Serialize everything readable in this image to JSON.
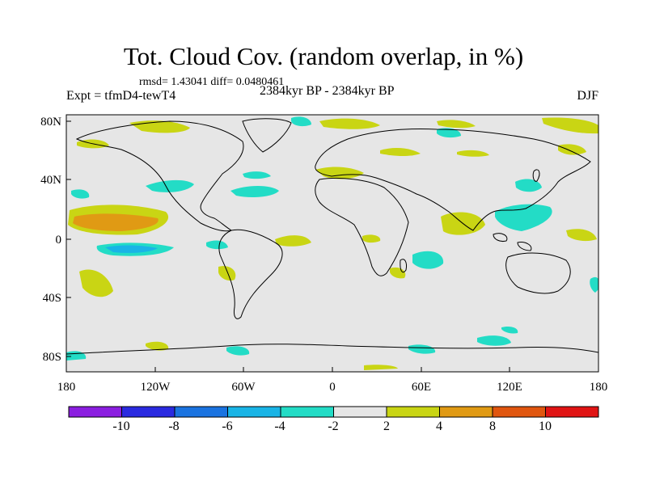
{
  "figure": {
    "title": "Tot. Cloud Cov. (random overlap, in %)",
    "stats": "rmsd= 1.43041 diff= 0.0480461",
    "left_label": "Expt = tfmD4-tewT4",
    "center_label": "2384kyr BP - 2384kyr BP",
    "right_label": "DJF"
  },
  "axes": {
    "lon_ticks": [
      "180",
      "120W",
      "60W",
      "0",
      "60E",
      "120E",
      "180"
    ],
    "lat_ticks": [
      "80N",
      "40N",
      "0",
      "40S",
      "80S"
    ]
  },
  "colorbar": {
    "labels": [
      "-10",
      "-8",
      "-6",
      "-4",
      "-2",
      "2",
      "4",
      "8",
      "10"
    ],
    "colors": [
      "#8b1ee0",
      "#2a2ae0",
      "#1a73e0",
      "#19b4e6",
      "#23dcc6",
      "#e6e6e6",
      "#c9d514",
      "#e09a14",
      "#e0560f",
      "#e01414"
    ]
  },
  "map_colors": {
    "background": "#e6e6e6",
    "cyan": "#23dcc6",
    "light_blue": "#19b4e6",
    "yellow": "#c9d514",
    "orange": "#e09a14",
    "coast": "#000000"
  }
}
